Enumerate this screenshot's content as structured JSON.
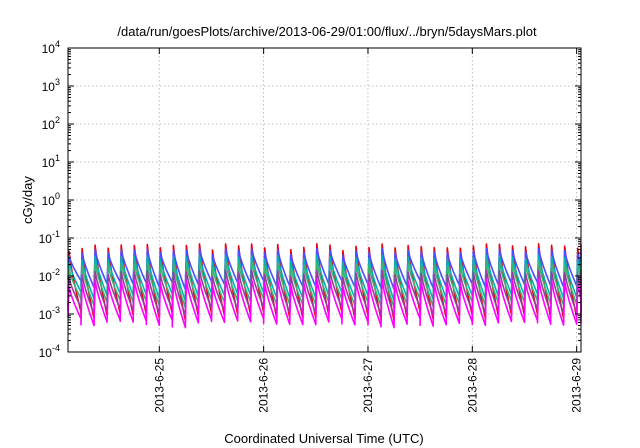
{
  "chart_data": {
    "type": "line",
    "title": "/data/run/goesPlots/archive/2013-06-29/01:00/flux/../bryn/5daysMars.plot",
    "xlabel": "Coordinated Universal Time (UTC)",
    "ylabel": "cGy/day",
    "yscale": "log",
    "ylim": [
      0.0001,
      10000
    ],
    "y_ticks": [
      {
        "value": 0.0001,
        "base": "10",
        "exp": "-4"
      },
      {
        "value": 0.001,
        "base": "10",
        "exp": "-3"
      },
      {
        "value": 0.01,
        "base": "10",
        "exp": "-2"
      },
      {
        "value": 0.1,
        "base": "10",
        "exp": "-1"
      },
      {
        "value": 1,
        "base": "10",
        "exp": "0"
      },
      {
        "value": 10,
        "base": "10",
        "exp": "1"
      },
      {
        "value": 100,
        "base": "10",
        "exp": "2"
      },
      {
        "value": 1000,
        "base": "10",
        "exp": "3"
      },
      {
        "value": 10000,
        "base": "10",
        "exp": "4"
      }
    ],
    "xlim": [
      "2013-06-24 03:00",
      "2013-06-29 01:00"
    ],
    "x_ticks": [
      "2013-6-25",
      "2013-6-26",
      "2013-6-27",
      "2013-6-28",
      "2013-6-29"
    ],
    "grid": true,
    "legend": "none",
    "sawtooth_period_hours": 3,
    "series": [
      {
        "color": "#e8000b",
        "peak": 0.06,
        "trough": 0.0009
      },
      {
        "color": "#4d4dff",
        "peak": 0.045,
        "trough": 0.006
      },
      {
        "color": "#00b4b4",
        "peak": 0.03,
        "trough": 0.003
      },
      {
        "color": "#3cb371",
        "peak": 0.02,
        "trough": 0.002
      },
      {
        "color": "#9a3ba0",
        "peak": 0.012,
        "trough": 0.0012
      },
      {
        "color": "#ff00ff",
        "peak": 0.007,
        "trough": 0.0006
      }
    ]
  }
}
